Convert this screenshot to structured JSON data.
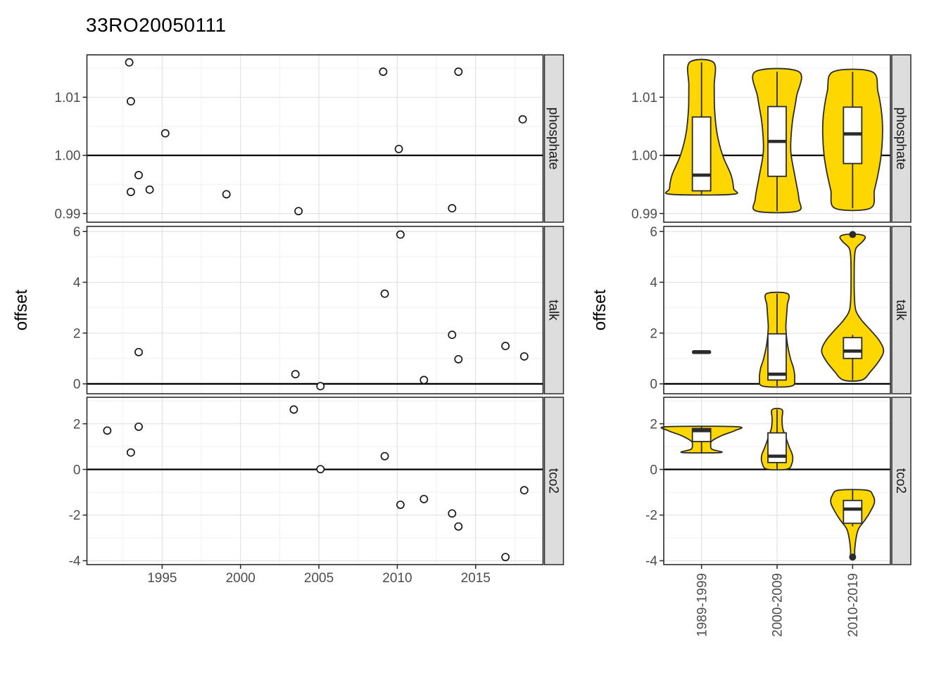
{
  "title": "33RO20050111",
  "axis": {
    "y_label": "offset"
  },
  "facets": [
    "phosphate",
    "talk",
    "tco2"
  ],
  "colors": {
    "violin_fill": "#FFD700",
    "outline": "#2B2B2B",
    "point_stroke": "#1A1A1A",
    "strip_bg": "#DDDDDD",
    "strip_text": "#1A1A1A",
    "grid_major": "#E2E2E2",
    "grid_minor": "#F1F1F1",
    "axis_text": "#4D4D4D",
    "tick_mark": "#333333",
    "ref_line": "#000000",
    "panel_bg": "#FFFFFF"
  },
  "facet_axes": [
    {
      "facet": "phosphate",
      "ylim": [
        0.9885,
        1.0173
      ],
      "yticks": [
        0.99,
        1.0,
        1.01
      ],
      "ytick_labels": [
        "0.99",
        "1.00",
        "1.01"
      ],
      "yminor": [
        0.995,
        1.005,
        1.015
      ],
      "ref_line": 1.0
    },
    {
      "facet": "talk",
      "ylim": [
        -0.39,
        6.2
      ],
      "yticks": [
        0,
        2,
        4,
        6
      ],
      "ytick_labels": [
        "0",
        "2",
        "4",
        "6"
      ],
      "yminor": [
        1,
        3,
        5
      ],
      "ref_line": 0
    },
    {
      "facet": "tco2",
      "ylim": [
        -4.17,
        3.16
      ],
      "yticks": [
        -4,
        -2,
        0,
        2
      ],
      "ytick_labels": [
        "-4",
        "-2",
        "0",
        "2"
      ],
      "yminor": [
        -3,
        -1,
        1,
        3
      ],
      "ref_line": 0
    }
  ],
  "chart_data": [
    {
      "type": "scatter",
      "xlabel": "",
      "ylabel": "offset",
      "x": {
        "lim": [
          1990.2,
          2019.3
        ],
        "ticks": [
          1995,
          2000,
          2005,
          2010,
          2015
        ],
        "tick_labels": [
          "1995",
          "2000",
          "2005",
          "2010",
          "2015"
        ],
        "minor": [
          1992.5,
          1997.5,
          2002.5,
          2007.5,
          2012.5,
          2017.5
        ]
      },
      "panels": [
        {
          "facet": "phosphate",
          "points": [
            [
              1992.9,
              1.016
            ],
            [
              1993.0,
              1.0093
            ],
            [
              1993.0,
              0.9937
            ],
            [
              1993.5,
              0.9966
            ],
            [
              1994.2,
              0.9941
            ],
            [
              1995.2,
              1.0038
            ],
            [
              1999.1,
              0.9933
            ],
            [
              2003.7,
              0.9904
            ],
            [
              2009.1,
              1.0144
            ],
            [
              2010.1,
              1.0011
            ],
            [
              2013.5,
              0.9909
            ],
            [
              2013.9,
              1.0144
            ],
            [
              2018.0,
              1.0062
            ]
          ]
        },
        {
          "facet": "talk",
          "points": [
            [
              1993.5,
              1.25
            ],
            [
              2003.5,
              0.38
            ],
            [
              2005.1,
              -0.09
            ],
            [
              2009.2,
              3.55
            ],
            [
              2010.2,
              5.88
            ],
            [
              2011.7,
              0.15
            ],
            [
              2013.5,
              1.93
            ],
            [
              2013.9,
              0.97
            ],
            [
              2016.9,
              1.49
            ],
            [
              2018.1,
              1.08
            ]
          ]
        },
        {
          "facet": "tco2",
          "points": [
            [
              1991.5,
              1.7
            ],
            [
              1993.0,
              0.74
            ],
            [
              1993.5,
              1.87
            ],
            [
              2003.4,
              2.62
            ],
            [
              2005.1,
              0.01
            ],
            [
              2009.2,
              0.58
            ],
            [
              2010.2,
              -1.55
            ],
            [
              2011.7,
              -1.3
            ],
            [
              2013.5,
              -1.93
            ],
            [
              2013.9,
              -2.5
            ],
            [
              2016.9,
              -3.84
            ],
            [
              2018.1,
              -0.91
            ]
          ]
        }
      ]
    },
    {
      "type": "violin-box",
      "categories": [
        "1989-1999",
        "2000-2009",
        "2010-2019"
      ],
      "panels": [
        {
          "facet": "phosphate",
          "violins": [
            {
              "category": "1989-1999",
              "kind": "violin",
              "min": 0.9933,
              "max": 1.016,
              "q1": 0.9939,
              "median": 0.9966,
              "q3": 1.0066,
              "whisker_low": 0.9933,
              "whisker_high": 1.016,
              "outliers": [],
              "profile": [
                [
                  0.9933,
                  0.88
                ],
                [
                  0.9943,
                  0.91
                ],
                [
                  0.9966,
                  0.84
                ],
                [
                  1.0,
                  0.6
                ],
                [
                  1.0038,
                  0.44
                ],
                [
                  1.008,
                  0.37
                ],
                [
                  1.012,
                  0.36
                ],
                [
                  1.016,
                  0.34
                ]
              ]
            },
            {
              "category": "2000-2009",
              "kind": "violin",
              "min": 0.9904,
              "max": 1.0144,
              "q1": 0.9964,
              "median": 1.0024,
              "q3": 1.0084,
              "whisker_low": 0.9904,
              "whisker_high": 1.0144,
              "outliers": [],
              "profile": [
                [
                  0.9904,
                  0.58
                ],
                [
                  0.9925,
                  0.62
                ],
                [
                  0.996,
                  0.52
                ],
                [
                  1.0,
                  0.4
                ],
                [
                  1.0024,
                  0.39
                ],
                [
                  1.006,
                  0.44
                ],
                [
                  1.01,
                  0.55
                ],
                [
                  1.0144,
                  0.62
                ]
              ]
            },
            {
              "category": "2010-2019",
              "kind": "violin",
              "min": 0.9909,
              "max": 1.0144,
              "q1": 0.9986,
              "median": 1.0037,
              "q3": 1.0083,
              "whisker_low": 0.9909,
              "whisker_high": 1.0144,
              "outliers": [],
              "profile": [
                [
                  0.9909,
                  0.5
                ],
                [
                  0.994,
                  0.62
                ],
                [
                  0.997,
                  0.73
                ],
                [
                  1.0,
                  0.81
                ],
                [
                  1.0037,
                  0.85
                ],
                [
                  1.007,
                  0.83
                ],
                [
                  1.011,
                  0.72
                ],
                [
                  1.0144,
                  0.55
                ]
              ]
            }
          ]
        },
        {
          "facet": "talk",
          "violins": [
            {
              "category": "1989-1999",
              "kind": "single",
              "value": 1.25
            },
            {
              "category": "2000-2009",
              "kind": "violin",
              "min": -0.09,
              "max": 3.55,
              "q1": 0.15,
              "median": 0.38,
              "q3": 1.97,
              "whisker_low": -0.09,
              "whisker_high": 3.55,
              "outliers": [],
              "profile": [
                [
                  -0.09,
                  0.4
                ],
                [
                  0.2,
                  0.5
                ],
                [
                  0.6,
                  0.47
                ],
                [
                  1.0,
                  0.38
                ],
                [
                  1.6,
                  0.29
                ],
                [
                  2.2,
                  0.25
                ],
                [
                  2.7,
                  0.27
                ],
                [
                  3.1,
                  0.29
                ],
                [
                  3.55,
                  0.3
                ]
              ]
            },
            {
              "category": "2010-2019",
              "kind": "violin",
              "min": 0.15,
              "max": 5.88,
              "q1": 1.0,
              "median": 1.29,
              "q3": 1.82,
              "whisker_low": 0.15,
              "whisker_high": 1.93,
              "outliers": [
                5.88
              ],
              "profile": [
                [
                  0.15,
                  0.26
                ],
                [
                  0.5,
                  0.52
                ],
                [
                  0.9,
                  0.75
                ],
                [
                  1.3,
                  0.88
                ],
                [
                  1.7,
                  0.76
                ],
                [
                  2.1,
                  0.52
                ],
                [
                  2.5,
                  0.26
                ],
                [
                  2.9,
                  0.09
                ],
                [
                  3.5,
                  0.05
                ],
                [
                  4.4,
                  0.045
                ],
                [
                  5.0,
                  0.055
                ],
                [
                  5.35,
                  0.1
                ],
                [
                  5.6,
                  0.28
                ],
                [
                  5.78,
                  0.36
                ],
                [
                  5.88,
                  0.22
                ]
              ]
            }
          ]
        },
        {
          "facet": "tco2",
          "violins": [
            {
              "category": "1989-1999",
              "kind": "violin",
              "min": 0.74,
              "max": 1.87,
              "q1": 1.22,
              "median": 1.7,
              "q3": 1.79,
              "whisker_low": 0.74,
              "whisker_high": 1.87,
              "outliers": [],
              "profile": [
                [
                  0.74,
                  0.55
                ],
                [
                  0.88,
                  0.3
                ],
                [
                  1.05,
                  0.26
                ],
                [
                  1.25,
                  0.3
                ],
                [
                  1.5,
                  0.6
                ],
                [
                  1.7,
                  0.95
                ],
                [
                  1.87,
                  1.0
                ]
              ]
            },
            {
              "category": "2000-2009",
              "kind": "violin",
              "min": 0.01,
              "max": 2.62,
              "q1": 0.3,
              "median": 0.58,
              "q3": 1.6,
              "whisker_low": 0.01,
              "whisker_high": 2.62,
              "outliers": [],
              "profile": [
                [
                  0.01,
                  0.28
                ],
                [
                  0.25,
                  0.42
                ],
                [
                  0.6,
                  0.44
                ],
                [
                  1.0,
                  0.34
                ],
                [
                  1.4,
                  0.25
                ],
                [
                  1.8,
                  0.16
                ],
                [
                  2.2,
                  0.14
                ],
                [
                  2.62,
                  0.14
                ]
              ]
            },
            {
              "category": "2010-2019",
              "kind": "violin",
              "min": -3.84,
              "max": -0.91,
              "q1": -2.36,
              "median": -1.74,
              "q3": -1.36,
              "whisker_low": -2.5,
              "whisker_high": -0.91,
              "outliers": [
                -3.84
              ],
              "profile": [
                [
                  -3.84,
                  0.05
                ],
                [
                  -3.5,
                  0.06
                ],
                [
                  -3.0,
                  0.1
                ],
                [
                  -2.6,
                  0.17
                ],
                [
                  -2.2,
                  0.36
                ],
                [
                  -1.8,
                  0.52
                ],
                [
                  -1.45,
                  0.62
                ],
                [
                  -1.15,
                  0.58
                ],
                [
                  -0.91,
                  0.4
                ]
              ]
            }
          ]
        }
      ]
    }
  ]
}
